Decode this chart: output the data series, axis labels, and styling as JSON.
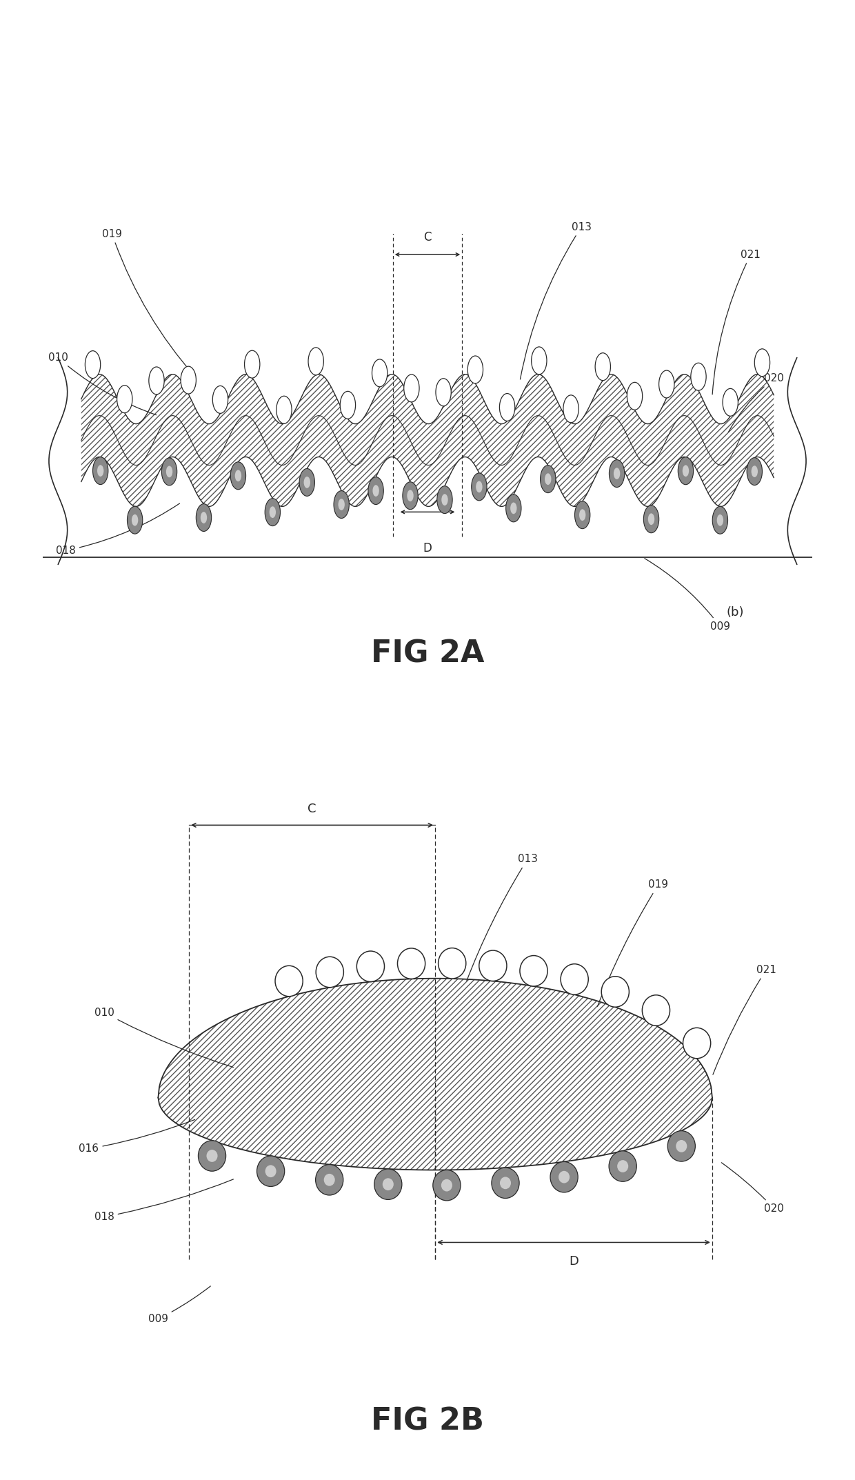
{
  "fig_width": 12.4,
  "fig_height": 21.46,
  "bg_color": "#ffffff",
  "line_color": "#2a2a2a",
  "label_fontsize": 11,
  "title_fontsize": 32,
  "fig2a_title": "FIG 2A",
  "fig2b_title": "FIG 2B",
  "sub_label": "(b)"
}
